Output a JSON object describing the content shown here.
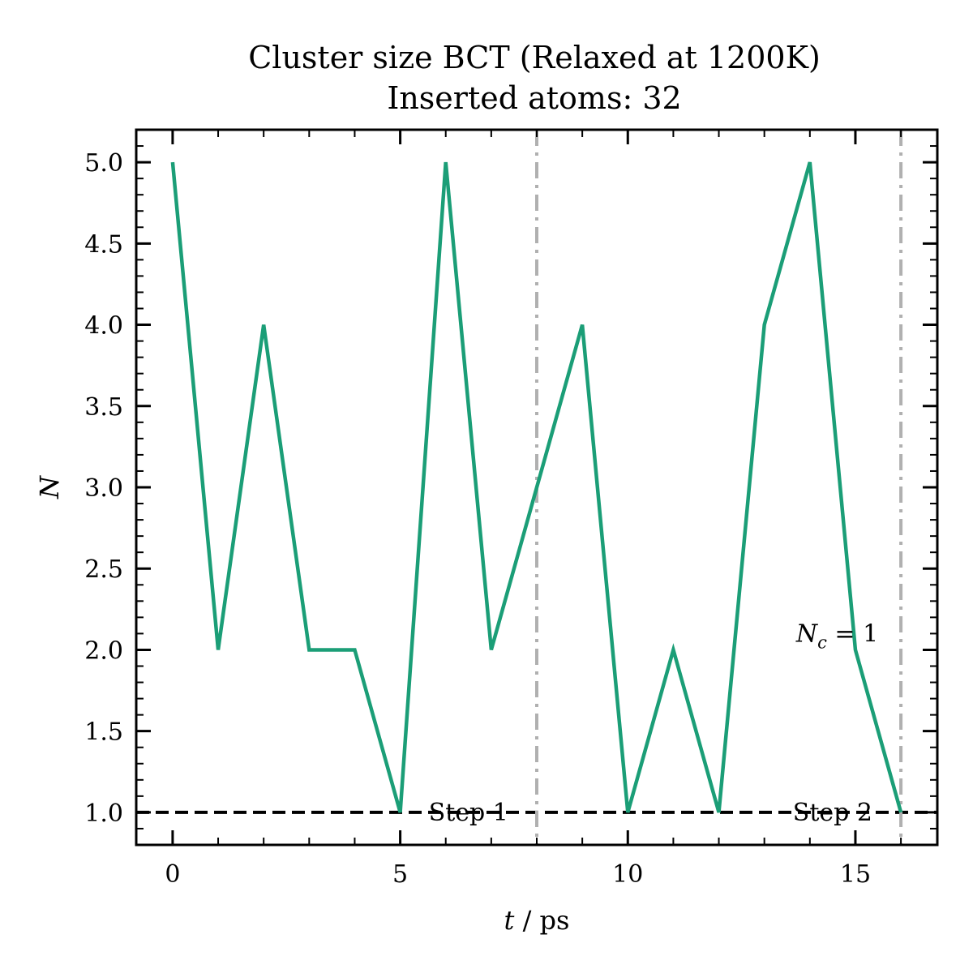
{
  "chart_data": {
    "type": "line",
    "title": "Cluster size BCT (Relaxed at 1200K)",
    "subtitle": "Inserted atoms: 32",
    "xlabel": "t / ps",
    "ylabel": "N",
    "xlim": [
      -0.8,
      16.8
    ],
    "ylim": [
      0.8,
      5.2
    ],
    "x_ticks": [
      0,
      5,
      10,
      15
    ],
    "y_ticks": [
      1.0,
      1.5,
      2.0,
      2.5,
      3.0,
      3.5,
      4.0,
      4.5,
      5.0
    ],
    "x_tick_labels": [
      "0",
      "5",
      "10",
      "15"
    ],
    "y_tick_labels": [
      "1.0",
      "1.5",
      "2.0",
      "2.5",
      "3.0",
      "3.5",
      "4.0",
      "4.5",
      "5.0"
    ],
    "grid": false,
    "series": [
      {
        "color": "#1b9e77",
        "x": [
          0,
          1,
          2,
          3,
          4,
          5,
          6,
          7,
          8,
          9,
          10,
          11,
          12,
          13,
          14,
          15,
          16
        ],
        "y": [
          5,
          2,
          4,
          2,
          2,
          1,
          5,
          2,
          3,
          4,
          1,
          2,
          1,
          4,
          5,
          2,
          1
        ]
      }
    ],
    "hlines": [
      {
        "y": 1.0,
        "style": "dashed",
        "color": "#000000"
      }
    ],
    "vlines": [
      {
        "x": 8,
        "style": "dashdot",
        "color": "#b0b0b0"
      },
      {
        "x": 16,
        "style": "dashdot",
        "color": "#b0b0b0"
      }
    ],
    "annotations": {
      "step1": {
        "text": "Step 1",
        "x": 6.5,
        "y": 1.0
      },
      "step2": {
        "text": "Step 2",
        "x": 14.5,
        "y": 1.0
      },
      "nc": {
        "text_var": "N",
        "text_sub": "c",
        "text_rest": " = 1",
        "x": 14.6,
        "y": 2.05
      }
    }
  }
}
